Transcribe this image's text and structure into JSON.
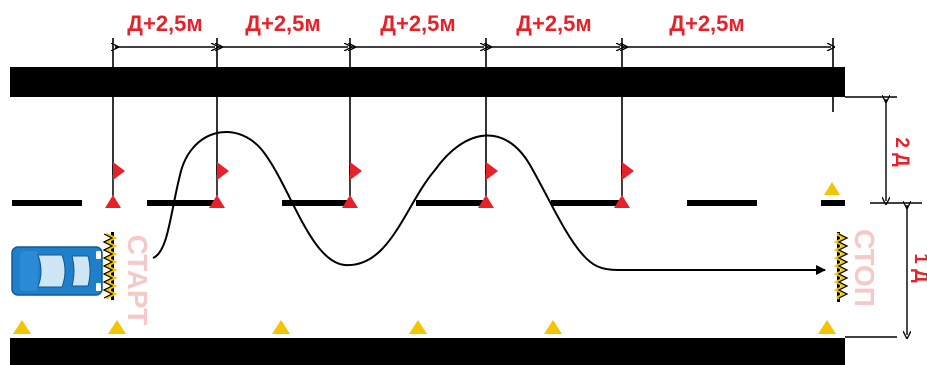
{
  "dimensions": {
    "segments": [
      "Д+2,5м",
      "Д+2,5м",
      "Д+2,5м",
      "Д+2,5м",
      "Д+2,5м"
    ]
  },
  "side_dimensions": {
    "upper": "2 Д",
    "lower": "1 Д"
  },
  "labels": {
    "start": "СТАРТ",
    "stop": "СТОП"
  },
  "colors": {
    "road_edge": "#000000",
    "dimension_text": "#e8202a",
    "flag": "#e8202a",
    "cone": "#f2c500",
    "car": "#1f7fc9",
    "gate_label": "#f6c9c9"
  },
  "icons": {
    "vehicle": "car-icon",
    "flag": "flag-icon",
    "cone": "cone-icon"
  }
}
